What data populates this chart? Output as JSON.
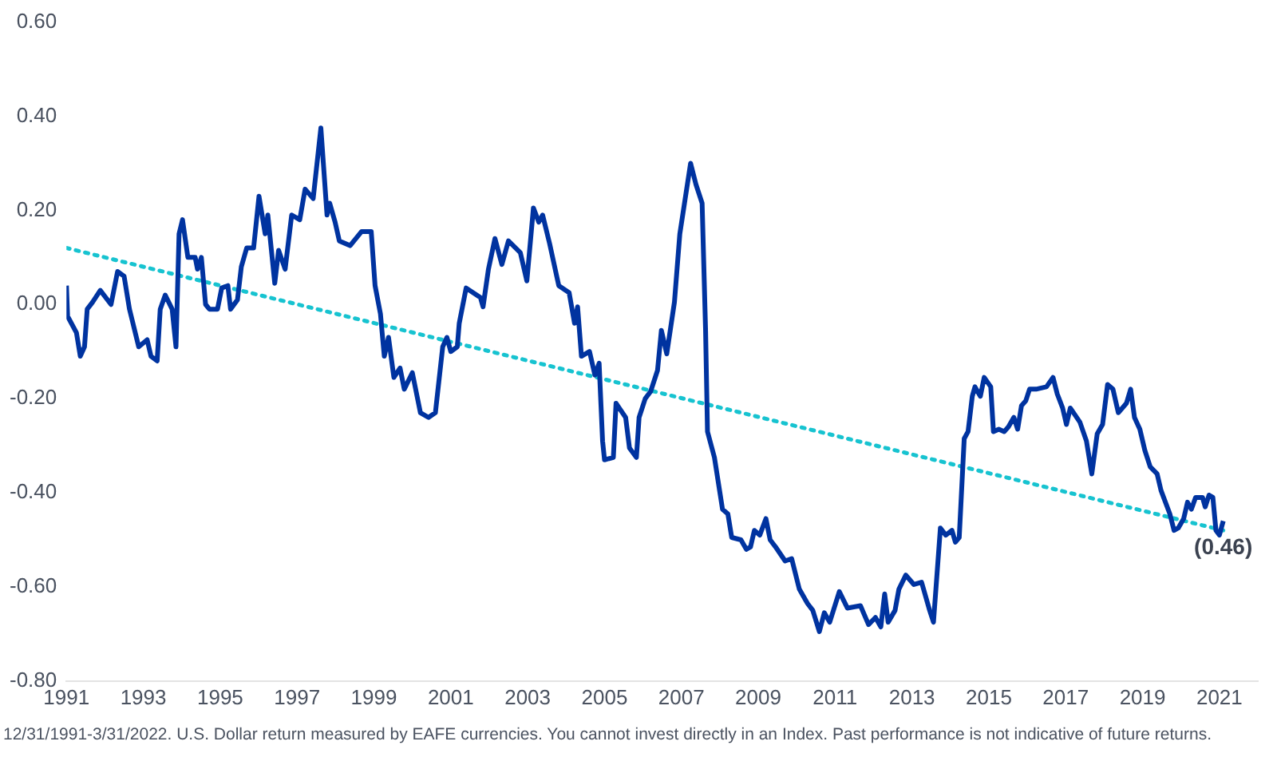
{
  "chart_data": {
    "type": "line",
    "legend": false,
    "grid": false,
    "xlim": [
      1991,
      2022
    ],
    "xticks": [
      1991,
      1993,
      1995,
      1997,
      1999,
      2001,
      2003,
      2005,
      2007,
      2009,
      2011,
      2013,
      2015,
      2017,
      2019,
      2021
    ],
    "ylim": [
      -0.8,
      0.6
    ],
    "yticks": [
      {
        "value": -0.8,
        "label": "-0.80"
      },
      {
        "value": -0.6,
        "label": "-0.60"
      },
      {
        "value": -0.4,
        "label": "-0.40"
      },
      {
        "value": -0.2,
        "label": "-0.20"
      },
      {
        "value": 0,
        "label": "0.00"
      },
      {
        "value": 0.2,
        "label": "0.20"
      },
      {
        "value": 0.4,
        "label": "0.40"
      },
      {
        "value": 0.6,
        "label": "0.60"
      }
    ],
    "series": [
      {
        "color": "#0033a0",
        "marker": "none",
        "line_style": "solid",
        "x": [
          1991.0,
          1991.03,
          1991.26,
          1991.36,
          1991.47,
          1991.54,
          1991.68,
          1991.88,
          1992.16,
          1992.33,
          1992.5,
          1992.64,
          1992.88,
          1993.1,
          1993.2,
          1993.36,
          1993.44,
          1993.57,
          1993.75,
          1993.85,
          1993.93,
          1994.02,
          1994.16,
          1994.35,
          1994.41,
          1994.51,
          1994.62,
          1994.72,
          1994.93,
          1995.04,
          1995.2,
          1995.27,
          1995.45,
          1995.55,
          1995.69,
          1995.87,
          1996.01,
          1996.17,
          1996.24,
          1996.42,
          1996.52,
          1996.69,
          1996.86,
          1997.07,
          1997.21,
          1997.42,
          1997.62,
          1997.78,
          1997.85,
          1997.99,
          1998.1,
          1998.38,
          1998.68,
          1998.93,
          1999.03,
          1999.17,
          1999.27,
          1999.38,
          1999.52,
          1999.68,
          1999.79,
          2000.0,
          2000.21,
          2000.42,
          2000.6,
          2000.79,
          2000.9,
          2001.0,
          2001.17,
          2001.22,
          2001.4,
          2001.77,
          2001.84,
          2001.98,
          2002.15,
          2002.33,
          2002.5,
          2002.81,
          2002.98,
          2003.15,
          2003.29,
          2003.39,
          2003.57,
          2003.81,
          2004.08,
          2004.22,
          2004.3,
          2004.4,
          2004.61,
          2004.75,
          2004.86,
          2004.95,
          2005.0,
          2005.23,
          2005.3,
          2005.55,
          2005.65,
          2005.83,
          2005.9,
          2006.06,
          2006.2,
          2006.38,
          2006.48,
          2006.62,
          2006.82,
          2006.96,
          2007.1,
          2007.24,
          2007.38,
          2007.54,
          2007.63,
          2007.68,
          2007.86,
          2008.07,
          2008.21,
          2008.31,
          2008.55,
          2008.69,
          2008.8,
          2008.9,
          2009.04,
          2009.2,
          2009.31,
          2009.45,
          2009.7,
          2009.87,
          2010.07,
          2010.28,
          2010.42,
          2010.59,
          2010.72,
          2010.86,
          2011.11,
          2011.32,
          2011.66,
          2011.87,
          2012.05,
          2012.19,
          2012.29,
          2012.38,
          2012.56,
          2012.66,
          2012.84,
          2013.05,
          2013.25,
          2013.46,
          2013.56,
          2013.74,
          2013.88,
          2014.04,
          2014.13,
          2014.23,
          2014.36,
          2014.46,
          2014.57,
          2014.64,
          2014.78,
          2014.88,
          2015.05,
          2015.12,
          2015.26,
          2015.4,
          2015.51,
          2015.65,
          2015.75,
          2015.85,
          2015.96,
          2016.06,
          2016.23,
          2016.5,
          2016.67,
          2016.78,
          2016.92,
          2017.02,
          2017.12,
          2017.37,
          2017.54,
          2017.68,
          2017.82,
          2017.96,
          2018.09,
          2018.23,
          2018.37,
          2018.58,
          2018.69,
          2018.79,
          2018.93,
          2019.06,
          2019.2,
          2019.38,
          2019.48,
          2019.71,
          2019.82,
          2019.93,
          2020.07,
          2020.17,
          2020.27,
          2020.38,
          2020.56,
          2020.63,
          2020.73,
          2020.83,
          2020.91,
          2021.0,
          2021.1
        ],
        "values": [
          0.04,
          -0.025,
          -0.06,
          -0.11,
          -0.09,
          -0.01,
          0.005,
          0.03,
          0.0,
          0.07,
          0.06,
          -0.01,
          -0.09,
          -0.075,
          -0.11,
          -0.12,
          -0.01,
          0.02,
          -0.01,
          -0.09,
          0.15,
          0.18,
          0.1,
          0.1,
          0.075,
          0.1,
          0.0,
          -0.01,
          -0.01,
          0.035,
          0.04,
          -0.01,
          0.01,
          0.08,
          0.12,
          0.12,
          0.23,
          0.15,
          0.19,
          0.045,
          0.115,
          0.075,
          0.19,
          0.18,
          0.245,
          0.225,
          0.375,
          0.19,
          0.215,
          0.175,
          0.135,
          0.125,
          0.155,
          0.155,
          0.04,
          -0.02,
          -0.11,
          -0.07,
          -0.155,
          -0.135,
          -0.18,
          -0.145,
          -0.23,
          -0.24,
          -0.23,
          -0.09,
          -0.07,
          -0.1,
          -0.09,
          -0.04,
          0.035,
          0.015,
          -0.005,
          0.075,
          0.14,
          0.085,
          0.135,
          0.11,
          0.05,
          0.205,
          0.175,
          0.19,
          0.13,
          0.04,
          0.025,
          -0.04,
          -0.005,
          -0.11,
          -0.1,
          -0.15,
          -0.125,
          -0.29,
          -0.33,
          -0.325,
          -0.21,
          -0.24,
          -0.305,
          -0.325,
          -0.24,
          -0.2,
          -0.185,
          -0.14,
          -0.055,
          -0.105,
          0.005,
          0.15,
          0.225,
          0.3,
          0.255,
          0.215,
          -0.055,
          -0.27,
          -0.325,
          -0.435,
          -0.445,
          -0.495,
          -0.5,
          -0.52,
          -0.515,
          -0.48,
          -0.49,
          -0.455,
          -0.5,
          -0.515,
          -0.545,
          -0.54,
          -0.605,
          -0.635,
          -0.65,
          -0.695,
          -0.655,
          -0.675,
          -0.61,
          -0.645,
          -0.64,
          -0.68,
          -0.665,
          -0.685,
          -0.615,
          -0.675,
          -0.65,
          -0.605,
          -0.575,
          -0.595,
          -0.59,
          -0.65,
          -0.675,
          -0.475,
          -0.49,
          -0.48,
          -0.505,
          -0.495,
          -0.285,
          -0.27,
          -0.195,
          -0.175,
          -0.195,
          -0.155,
          -0.175,
          -0.27,
          -0.265,
          -0.27,
          -0.26,
          -0.24,
          -0.265,
          -0.215,
          -0.205,
          -0.18,
          -0.18,
          -0.175,
          -0.155,
          -0.19,
          -0.22,
          -0.255,
          -0.22,
          -0.25,
          -0.29,
          -0.36,
          -0.275,
          -0.255,
          -0.17,
          -0.18,
          -0.23,
          -0.21,
          -0.18,
          -0.24,
          -0.265,
          -0.31,
          -0.345,
          -0.36,
          -0.395,
          -0.445,
          -0.48,
          -0.475,
          -0.455,
          -0.42,
          -0.435,
          -0.41,
          -0.41,
          -0.43,
          -0.405,
          -0.41,
          -0.48,
          -0.49,
          -0.46
        ]
      },
      {
        "type": "line",
        "color": "#17c3d0",
        "marker": "none",
        "line_style": "dotted",
        "x": [
          1991,
          2021.1
        ],
        "values": [
          0.12,
          -0.48
        ]
      }
    ],
    "annotations": [
      {
        "text": "(0.46)",
        "x": 2021.1,
        "y": -0.46
      },
      "12/31/1991-3/31/2022. U.S. Dollar return measured by EAFE currencies. You cannot invest directly in an Index. Past performance is not indicative of future returns."
    ]
  }
}
